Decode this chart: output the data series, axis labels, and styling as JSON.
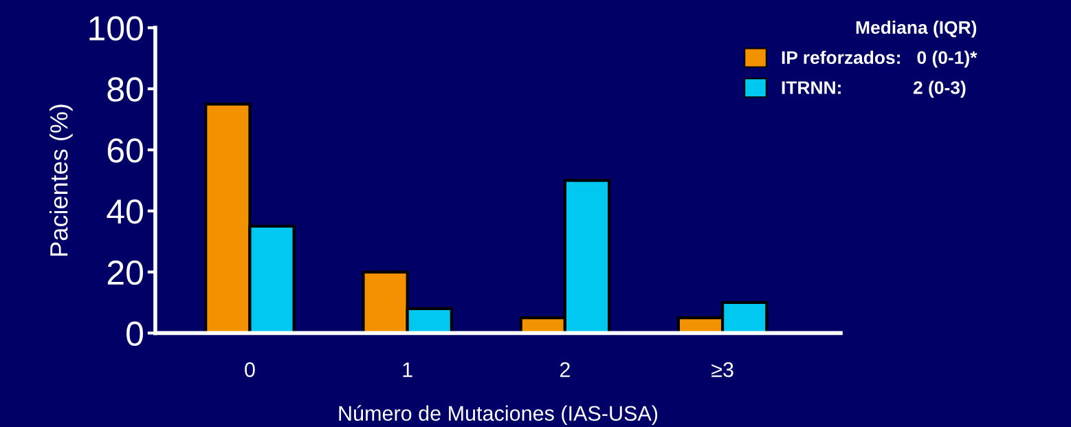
{
  "chart_data": {
    "type": "bar",
    "xlabel": "Número de Mutaciones (IAS-USA)",
    "ylabel": "Pacientes (%)",
    "legend_title": "Mediana (IQR)",
    "categories": [
      "0",
      "1",
      "2",
      "≥3"
    ],
    "series": [
      {
        "name": "IP reforzados:   0 (0-1)*",
        "color": "#f39200",
        "values": [
          75,
          20,
          5,
          5
        ]
      },
      {
        "name": "ITRNN:              2 (0-3)",
        "color": "#00c8f0",
        "values": [
          35,
          8,
          50,
          10
        ]
      }
    ],
    "ylim": [
      0,
      100
    ],
    "yticks": [
      0,
      20,
      40,
      60,
      80,
      100
    ],
    "grid": false,
    "legend": "top right"
  }
}
